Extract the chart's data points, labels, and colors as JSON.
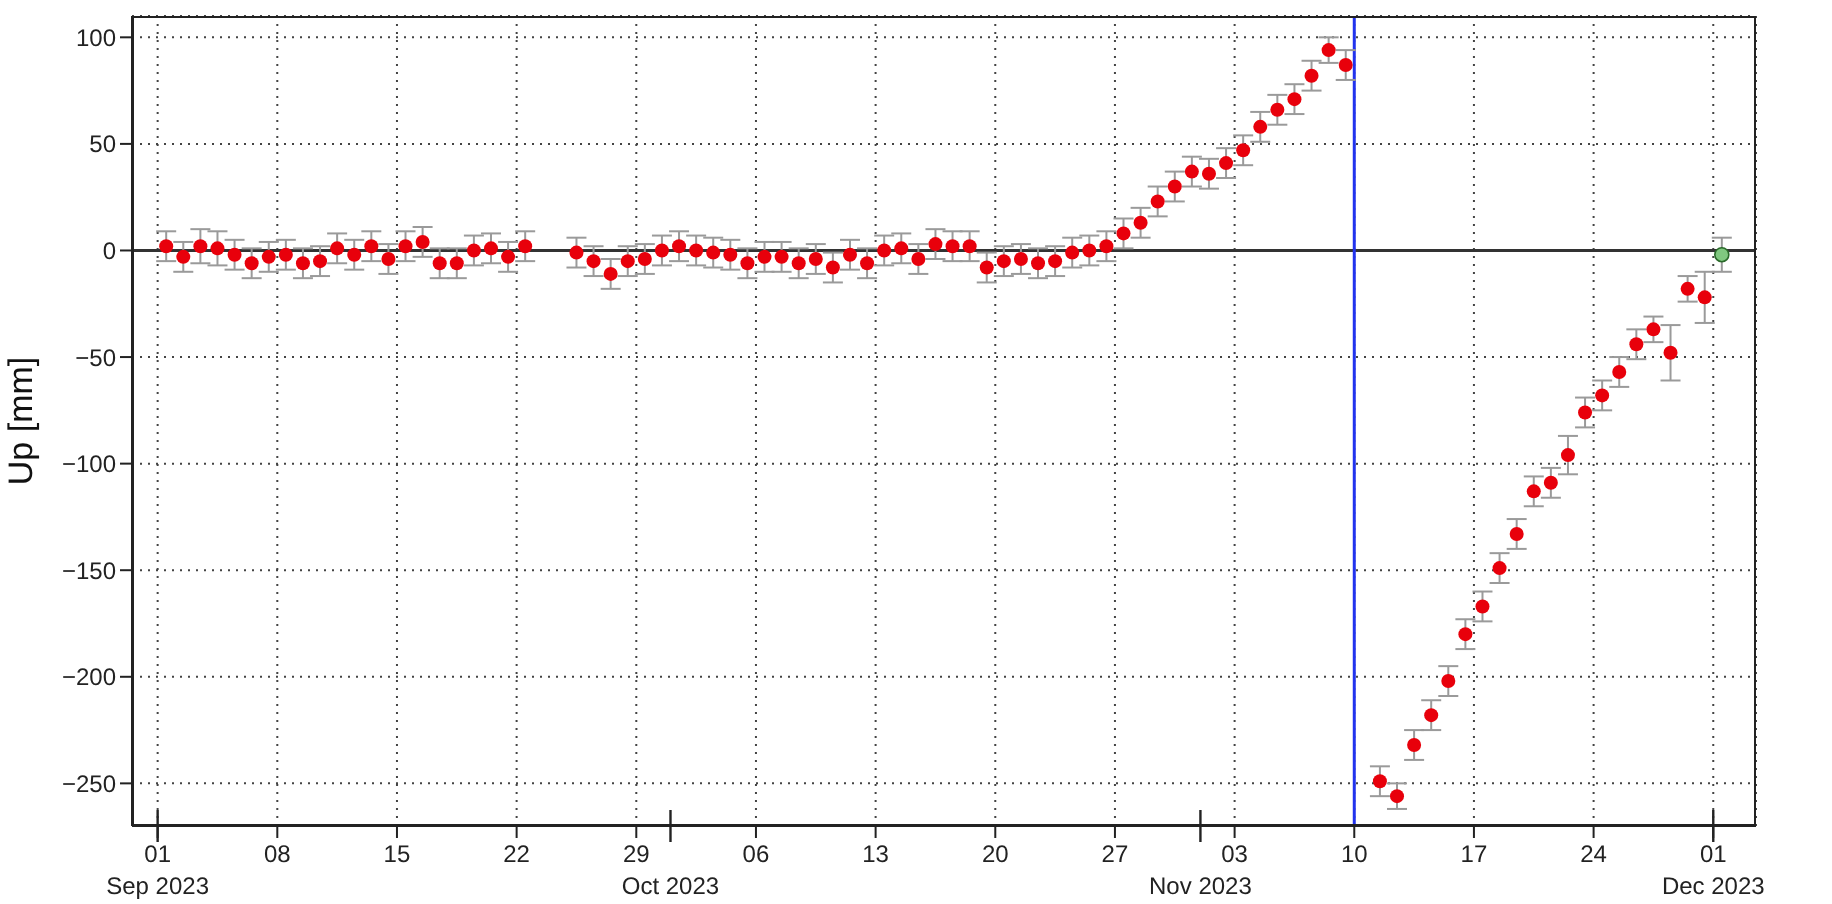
{
  "chart_data": {
    "type": "scatter",
    "ylabel": "Up [mm]",
    "marker": "circle",
    "grid": true,
    "xlim": [
      "2023-08-30T12:00",
      "2023-12-03T12:00"
    ],
    "ylim": [
      -270,
      110
    ],
    "x2lim": [
      "2023-08-30T12:00",
      "2023-12-03T12:00"
    ],
    "x2ticks": [
      {
        "value": "2023-09-01",
        "label": "Sep 2023"
      },
      {
        "value": "2023-10-01",
        "label": "Oct 2023"
      },
      {
        "value": "2023-11-01",
        "label": "Nov 2023"
      },
      {
        "value": "2023-12-01",
        "label": "Dec 2023"
      }
    ],
    "yticks": [
      -250,
      -200,
      -150,
      -100,
      -50,
      0,
      50,
      100
    ],
    "xticks": [
      {
        "value": "2023-09-01",
        "label": "01"
      },
      {
        "value": "2023-09-08",
        "label": "08"
      },
      {
        "value": "2023-09-15",
        "label": "15"
      },
      {
        "value": "2023-09-22",
        "label": "22"
      },
      {
        "value": "2023-09-29",
        "label": "29"
      },
      {
        "value": "2023-10-06",
        "label": "06"
      },
      {
        "value": "2023-10-13",
        "label": "13"
      },
      {
        "value": "2023-10-20",
        "label": "20"
      },
      {
        "value": "2023-10-27",
        "label": "27"
      },
      {
        "value": "2023-11-03",
        "label": "03"
      },
      {
        "value": "2023-11-10",
        "label": "10"
      },
      {
        "value": "2023-11-17",
        "label": "17"
      },
      {
        "value": "2023-11-24",
        "label": "24"
      },
      {
        "value": "2023-12-01",
        "label": "01"
      }
    ],
    "ref_lines": [
      {
        "axis": "y",
        "value": 0,
        "color": "#333333"
      },
      {
        "axis": "x",
        "value": "2023-11-10",
        "color": "#2233ee"
      }
    ],
    "series": [
      {
        "color": "#e8000b",
        "x": [
          "2023-09-01T12:00",
          "2023-09-02T12:00",
          "2023-09-03T12:00",
          "2023-09-04T12:00",
          "2023-09-05T12:00",
          "2023-09-06T12:00",
          "2023-09-07T12:00",
          "2023-09-08T12:00",
          "2023-09-09T12:00",
          "2023-09-10T12:00",
          "2023-09-11T12:00",
          "2023-09-12T12:00",
          "2023-09-13T12:00",
          "2023-09-14T12:00",
          "2023-09-15T12:00",
          "2023-09-16T12:00",
          "2023-09-17T12:00",
          "2023-09-18T12:00",
          "2023-09-19T12:00",
          "2023-09-20T12:00",
          "2023-09-21T12:00",
          "2023-09-22T12:00",
          "2023-09-25T12:00",
          "2023-09-26T12:00",
          "2023-09-27T12:00",
          "2023-09-28T12:00",
          "2023-09-29T12:00",
          "2023-09-30T12:00",
          "2023-10-01T12:00",
          "2023-10-02T12:00",
          "2023-10-03T12:00",
          "2023-10-04T12:00",
          "2023-10-05T12:00",
          "2023-10-06T12:00",
          "2023-10-07T12:00",
          "2023-10-08T12:00",
          "2023-10-09T12:00",
          "2023-10-10T12:00",
          "2023-10-11T12:00",
          "2023-10-12T12:00",
          "2023-10-13T12:00",
          "2023-10-14T12:00",
          "2023-10-15T12:00",
          "2023-10-16T12:00",
          "2023-10-17T12:00",
          "2023-10-18T12:00",
          "2023-10-19T12:00",
          "2023-10-20T12:00",
          "2023-10-21T12:00",
          "2023-10-22T12:00",
          "2023-10-23T12:00",
          "2023-10-24T12:00",
          "2023-10-25T12:00",
          "2023-10-26T12:00",
          "2023-10-27T12:00",
          "2023-10-28T12:00",
          "2023-10-29T12:00",
          "2023-10-30T12:00",
          "2023-10-31T12:00",
          "2023-11-01T12:00",
          "2023-11-02T12:00",
          "2023-11-03T12:00",
          "2023-11-04T12:00",
          "2023-11-05T12:00",
          "2023-11-06T12:00",
          "2023-11-07T12:00",
          "2023-11-08T12:00",
          "2023-11-09T12:00",
          "2023-11-11T12:00",
          "2023-11-12T12:00",
          "2023-11-13T12:00",
          "2023-11-14T12:00",
          "2023-11-15T12:00",
          "2023-11-16T12:00",
          "2023-11-17T12:00",
          "2023-11-18T12:00",
          "2023-11-19T12:00",
          "2023-11-20T12:00",
          "2023-11-21T12:00",
          "2023-11-22T12:00",
          "2023-11-23T12:00",
          "2023-11-24T12:00",
          "2023-11-25T12:00",
          "2023-11-26T12:00",
          "2023-11-27T12:00",
          "2023-11-28T12:00",
          "2023-11-29T12:00",
          "2023-11-30T12:00"
        ],
        "values": [
          2,
          -3,
          2,
          1,
          -2,
          -6,
          -3,
          -2,
          -6,
          -5,
          1,
          -2,
          2,
          -4,
          2,
          4,
          -6,
          -6,
          0,
          1,
          -3,
          2,
          -1,
          -5,
          -11,
          -5,
          -4,
          0,
          2,
          0,
          -1,
          -2,
          -6,
          -3,
          -3,
          -6,
          -4,
          -8,
          -2,
          -6,
          0,
          1,
          -4,
          3,
          2,
          2,
          -8,
          -5,
          -4,
          -6,
          -5,
          -1,
          0,
          2,
          8,
          13,
          23,
          30,
          37,
          36,
          41,
          47,
          58,
          66,
          71,
          82,
          94,
          87,
          -249,
          -256,
          -232,
          -218,
          -202,
          -180,
          -167,
          -149,
          -133,
          -113,
          -109,
          -96,
          -76,
          -68,
          -57,
          -44,
          -37,
          -48,
          -18,
          -22
        ],
        "errors": [
          7,
          7,
          8,
          8,
          7,
          7,
          7,
          7,
          7,
          7,
          7,
          7,
          7,
          7,
          7,
          7,
          7,
          7,
          7,
          7,
          7,
          7,
          7,
          7,
          7,
          7,
          7,
          7,
          7,
          7,
          7,
          7,
          7,
          7,
          7,
          7,
          7,
          7,
          7,
          7,
          7,
          7,
          7,
          7,
          7,
          7,
          7,
          7,
          7,
          7,
          7,
          7,
          7,
          7,
          7,
          7,
          7,
          7,
          7,
          7,
          7,
          7,
          7,
          7,
          7,
          7,
          6,
          7,
          7,
          6,
          7,
          7,
          7,
          7,
          7,
          7,
          7,
          7,
          7,
          9,
          7,
          7,
          7,
          7,
          6,
          13,
          6,
          12
        ]
      },
      {
        "color": "#80c880",
        "x": [
          "2023-12-01T12:00"
        ],
        "values": [
          -2
        ],
        "errors": [
          8
        ]
      }
    ]
  }
}
